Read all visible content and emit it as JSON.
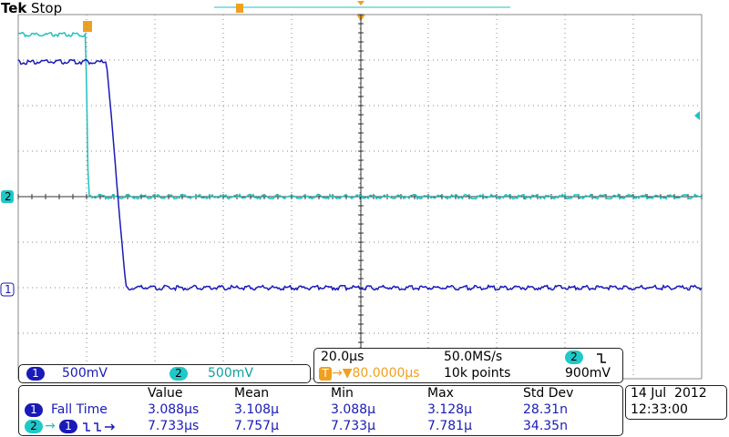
{
  "header": {
    "brand": "Tek",
    "status": "Stop"
  },
  "channels": [
    {
      "label": "1",
      "scale": "500mV"
    },
    {
      "label": "2",
      "scale": "500mV"
    }
  ],
  "timebase": {
    "scale": "20.0µs",
    "sample_rate": "50.0MS/s",
    "trigger_source": "2",
    "trigger_position": "80.0000µs",
    "record_length": "10k points",
    "trigger_level": "900mV"
  },
  "measurements": {
    "headers": [
      "Value",
      "Mean",
      "Min",
      "Max",
      "Std Dev"
    ],
    "rows": [
      {
        "source": "1",
        "name": "Fall Time",
        "values": [
          "3.088µs",
          "3.108µ",
          "3.088µ",
          "3.128µ",
          "28.31n"
        ]
      },
      {
        "source": "2",
        "target": "1",
        "values": [
          "7.733µs",
          "7.757µ",
          "7.733µ",
          "7.781µ",
          "34.35n"
        ]
      }
    ]
  },
  "datetime": {
    "date": "14 Jul  2012",
    "time": "12:33:00"
  }
}
